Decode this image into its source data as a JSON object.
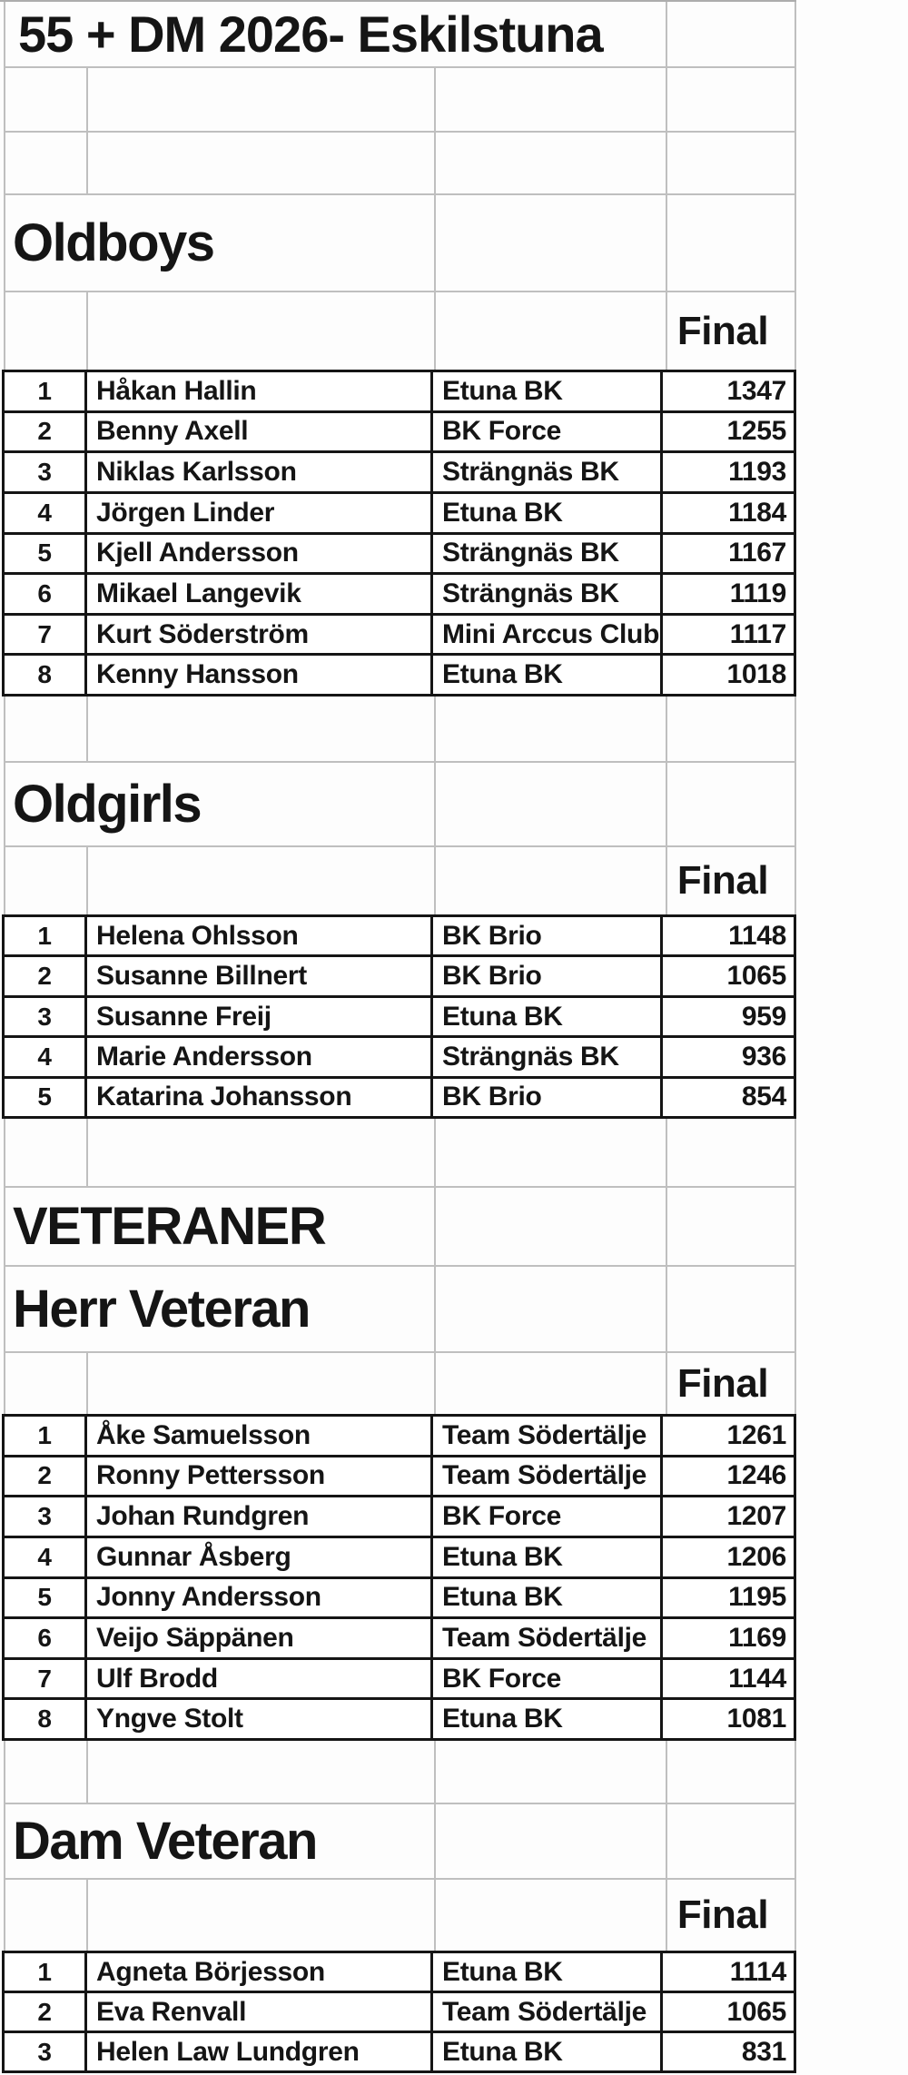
{
  "title": "55 + DM 2026- Eskilstuna",
  "labels": {
    "final": "Final"
  },
  "sections": [
    {
      "header": "Oldboys",
      "rows": [
        [
          "1",
          "Håkan Hallin",
          "Etuna BK",
          "1347"
        ],
        [
          "2",
          "Benny Axell",
          "BK Force",
          "1255"
        ],
        [
          "3",
          "Niklas Karlsson",
          "Strängnäs BK",
          "1193"
        ],
        [
          "4",
          "Jörgen Linder",
          "Etuna BK",
          "1184"
        ],
        [
          "5",
          "Kjell Andersson",
          "Strängnäs BK",
          "1167"
        ],
        [
          "6",
          "Mikael Langevik",
          "Strängnäs BK",
          "1119"
        ],
        [
          "7",
          "Kurt Söderström",
          "Mini Arccus Club",
          "1117"
        ],
        [
          "8",
          "Kenny Hansson",
          "Etuna BK",
          "1018"
        ]
      ]
    },
    {
      "header": "Oldgirls",
      "rows": [
        [
          "1",
          "Helena Ohlsson",
          "BK Brio",
          "1148"
        ],
        [
          "2",
          "Susanne Billnert",
          "BK Brio",
          "1065"
        ],
        [
          "3",
          "Susanne Freij",
          "Etuna BK",
          "959"
        ],
        [
          "4",
          "Marie Andersson",
          "Strängnäs BK",
          "936"
        ],
        [
          "5",
          "Katarina Johansson",
          "BK Brio",
          "854"
        ]
      ]
    },
    {
      "header": "VETERANER",
      "subheader": "Herr Veteran",
      "rows": [
        [
          "1",
          "Åke Samuelsson",
          "Team Södertälje",
          "1261"
        ],
        [
          "2",
          "Ronny Pettersson",
          "Team Södertälje",
          "1246"
        ],
        [
          "3",
          "Johan Rundgren",
          "BK Force",
          "1207"
        ],
        [
          "4",
          "Gunnar Åsberg",
          "Etuna BK",
          "1206"
        ],
        [
          "5",
          "Jonny Andersson",
          "Etuna BK",
          "1195"
        ],
        [
          "6",
          "Veijo Säppänen",
          "Team Södertälje",
          "1169"
        ],
        [
          "7",
          "Ulf Brodd",
          "BK Force",
          "1144"
        ],
        [
          "8",
          "Yngve Stolt",
          "Etuna BK",
          "1081"
        ]
      ]
    },
    {
      "header": "Dam Veteran",
      "rows": [
        [
          "1",
          "Agneta Börjesson",
          "Etuna BK",
          "1114"
        ],
        [
          "2",
          "Eva Renvall",
          "Team Södertälje",
          "1065"
        ],
        [
          "3",
          "Helen Law Lundgren",
          "Etuna BK",
          "831"
        ]
      ]
    }
  ]
}
